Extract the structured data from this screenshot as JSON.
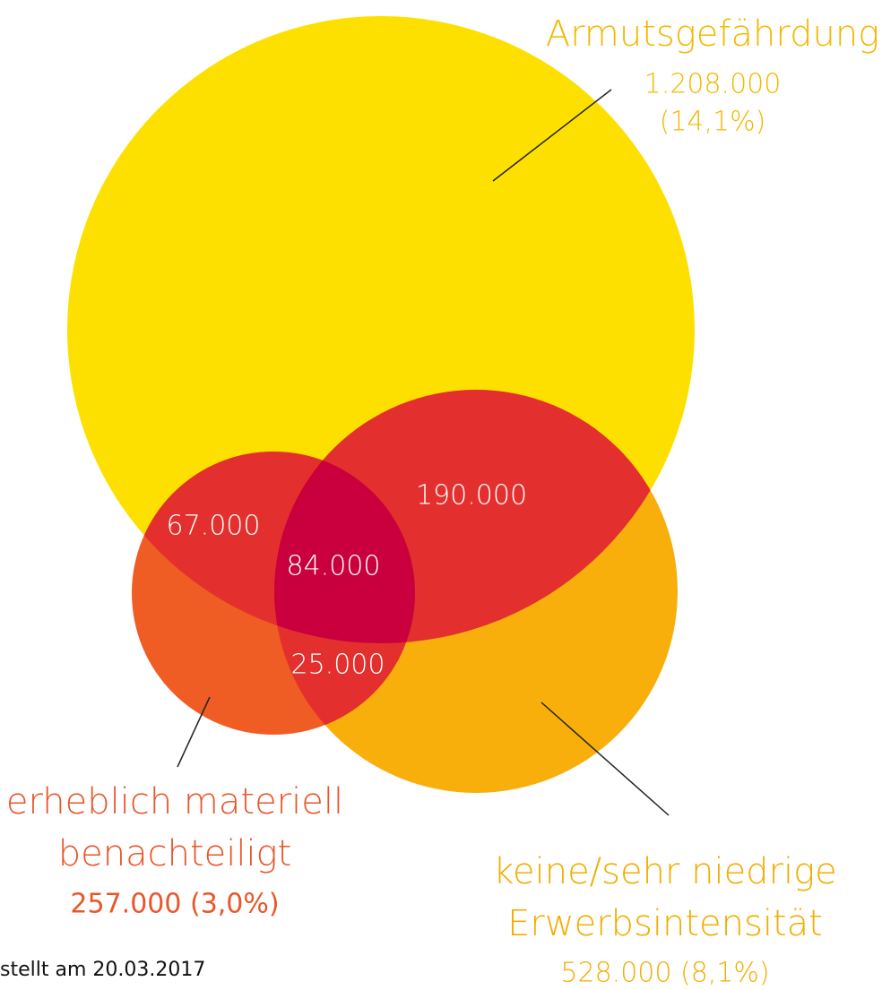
{
  "sets": [
    {
      "label": "Armutsgefährdung",
      "value": "1.208.000",
      "share": "(14,1%)"
    },
    {
      "label": [
        "erheblich materiell",
        "benachteiligt"
      ],
      "value": "257.000 (3,0%)"
    },
    {
      "label": [
        "keine/sehr niedrige",
        "Erwerbsintensität"
      ],
      "value": "528.000 (8,1%)"
    }
  ],
  "intersections": [
    "67.000",
    "84.000",
    "190.000",
    "25.000"
  ],
  "footer": "stellt am 20.03.2017"
}
